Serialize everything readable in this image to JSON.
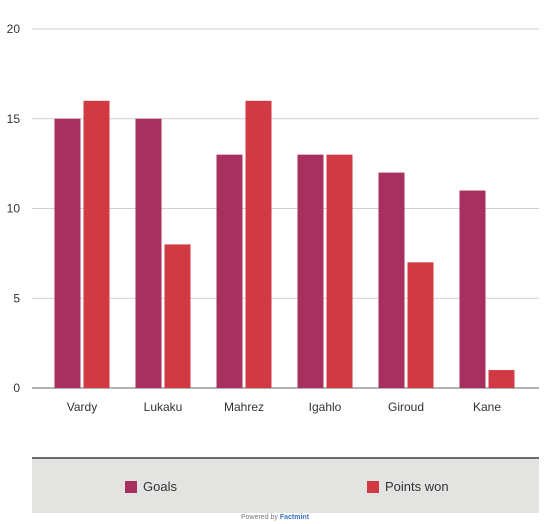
{
  "chart_data": {
    "type": "bar",
    "categories": [
      "Vardy",
      "Lukaku",
      "Mahrez",
      "Igahlo",
      "Giroud",
      "Kane"
    ],
    "series": [
      {
        "name": "Goals",
        "values": [
          15,
          15,
          13,
          13,
          12,
          11
        ],
        "color": "#a8305e"
      },
      {
        "name": "Points won",
        "values": [
          16,
          8,
          16,
          13,
          7,
          1
        ],
        "color": "#d23a43"
      }
    ],
    "ylim": [
      0,
      20
    ],
    "yticks": [
      0,
      5,
      10,
      15,
      20
    ],
    "grid": true,
    "legend_position": "bottom"
  },
  "footer": {
    "prefix": "Powered by",
    "brand": "Factmint"
  }
}
